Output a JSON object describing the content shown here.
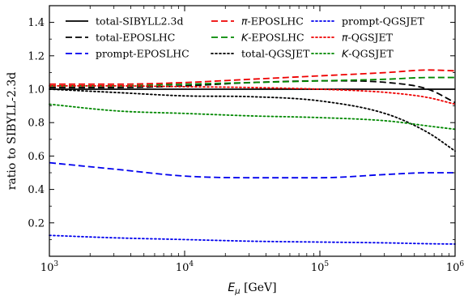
{
  "chart_data": {
    "type": "line",
    "xscale": "log",
    "xlim": [
      1000,
      1000000
    ],
    "ylim": [
      0,
      1.5
    ],
    "xlabel": "E_μ [GeV]",
    "xlabel_parts": {
      "symbol": "E",
      "subscript": "μ",
      "unit": " [GeV]"
    },
    "ylabel": "ratio to SIBYLL-2.3d",
    "title": "",
    "grid": false,
    "legend_position": "top",
    "legend_columns": 3,
    "x_ticks": [
      {
        "value": 1000,
        "base": "10",
        "exp": "3"
      },
      {
        "value": 10000,
        "base": "10",
        "exp": "4"
      },
      {
        "value": 100000,
        "base": "10",
        "exp": "5"
      },
      {
        "value": 1000000,
        "base": "10",
        "exp": "6"
      }
    ],
    "y_ticks": [
      {
        "value": 0.2,
        "label": "0.2"
      },
      {
        "value": 0.4,
        "label": "0.4"
      },
      {
        "value": 0.6,
        "label": "0.6"
      },
      {
        "value": 0.8,
        "label": "0.8"
      },
      {
        "value": 1.0,
        "label": "1.0"
      },
      {
        "value": 1.2,
        "label": "1.2"
      },
      {
        "value": 1.4,
        "label": "1.4"
      }
    ],
    "x": [
      1000,
      3162,
      10000,
      31623,
      100000,
      316228,
      630957,
      1000000
    ],
    "series": [
      {
        "name": "total-SIBYLL2.3d",
        "color": "#000000",
        "style": "solid",
        "values": [
          1.0,
          1.0,
          1.0,
          1.0,
          1.0,
          1.0,
          1.0,
          1.0
        ]
      },
      {
        "name": "total-EPOSLHC",
        "color": "#000000",
        "style": "dashed",
        "values": [
          1.01,
          1.01,
          1.02,
          1.04,
          1.05,
          1.04,
          1.0,
          0.92
        ]
      },
      {
        "name": "prompt-EPOSLHC",
        "color": "#0000ee",
        "style": "dashed",
        "values": [
          0.56,
          0.52,
          0.48,
          0.47,
          0.47,
          0.49,
          0.5,
          0.5
        ]
      },
      {
        "name": "π-EPOSLHC",
        "color": "#ee0000",
        "style": "dashed",
        "values": [
          1.03,
          1.03,
          1.04,
          1.06,
          1.08,
          1.1,
          1.115,
          1.11
        ]
      },
      {
        "name": "K-EPOSLHC",
        "color": "#008800",
        "style": "dashed",
        "values": [
          1.02,
          1.02,
          1.03,
          1.04,
          1.05,
          1.06,
          1.07,
          1.07
        ]
      },
      {
        "name": "total-QGSJET",
        "color": "#000000",
        "style": "dotted",
        "values": [
          1.0,
          0.98,
          0.96,
          0.955,
          0.93,
          0.85,
          0.74,
          0.63
        ]
      },
      {
        "name": "prompt-QGSJET",
        "color": "#0000ee",
        "style": "dotted",
        "values": [
          0.125,
          0.11,
          0.1,
          0.09,
          0.085,
          0.08,
          0.075,
          0.073
        ]
      },
      {
        "name": "π-QGSJET",
        "color": "#ee0000",
        "style": "dotted",
        "values": [
          1.02,
          1.02,
          1.015,
          1.01,
          1.0,
          0.98,
          0.95,
          0.91
        ]
      },
      {
        "name": "K-QGSJET",
        "color": "#008800",
        "style": "dotted",
        "values": [
          0.91,
          0.87,
          0.855,
          0.84,
          0.83,
          0.81,
          0.78,
          0.76
        ]
      }
    ]
  }
}
